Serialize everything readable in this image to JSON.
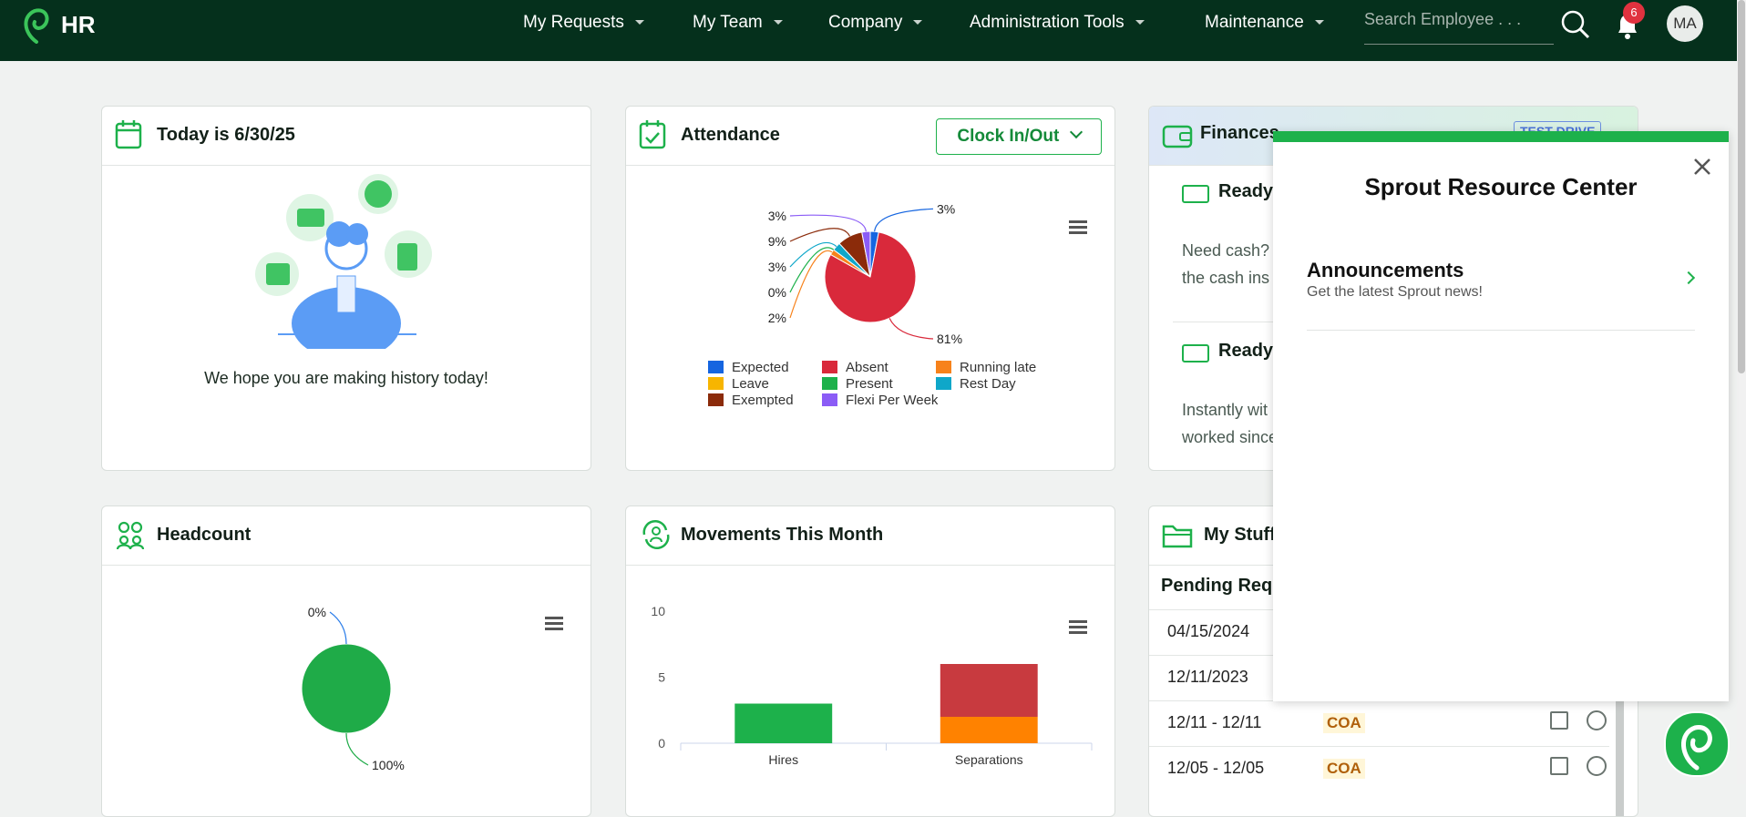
{
  "header": {
    "logo": "HR",
    "nav": [
      "My Requests",
      "My Team",
      "Company",
      "Administration Tools",
      "Maintenance"
    ],
    "search_placeholder": "Search Employee . . .",
    "notifications": 6,
    "avatar": "MA"
  },
  "today": {
    "title": "Today is 6/30/25",
    "message": "We hope you are making history today!"
  },
  "attendance": {
    "title": "Attendance",
    "button": "Clock In/Out",
    "chart_data": {
      "type": "pie",
      "categories": [
        "Expected",
        "Absent",
        "Running late",
        "Leave",
        "Present",
        "Rest Day",
        "Exempted",
        "Flexi Per Week"
      ],
      "values": [
        3,
        81,
        2,
        null,
        0,
        3,
        9,
        3
      ],
      "value_labels": [
        "3%",
        "81%",
        "2%",
        null,
        "0%",
        "3%",
        "9%",
        "3%"
      ],
      "colors": [
        "#1565e0",
        "#d9293b",
        "#f7821b",
        "#f7b500",
        "#1db14b",
        "#0fa7c9",
        "#8b2b0a",
        "#8b5cf6"
      ],
      "legend": "bottom"
    }
  },
  "finances": {
    "title": "Finances",
    "badge": "TEST DRIVE",
    "items": [
      {
        "heading": "Ready",
        "lines": [
          "Need cash? I",
          "the cash ins"
        ]
      },
      {
        "heading": "Ready",
        "lines": [
          "Instantly wit",
          "worked since"
        ]
      }
    ]
  },
  "headcount": {
    "title": "Headcount",
    "chart_data": {
      "type": "pie",
      "values": [
        0,
        100
      ],
      "value_labels": [
        "0%",
        "100%"
      ],
      "colors": [
        "#2b7de9",
        "#1fab48"
      ]
    }
  },
  "movements": {
    "title": "Movements This Month",
    "chart_data": {
      "type": "bar",
      "stacked": true,
      "categories": [
        "Hires",
        "Separations"
      ],
      "series": [
        {
          "color": "#1db14b",
          "values": [
            3,
            null
          ]
        },
        {
          "color": "#ff8200",
          "values": [
            null,
            2
          ]
        },
        {
          "color": "#c83a3f",
          "values": [
            null,
            4
          ]
        }
      ],
      "ylim": [
        0,
        10
      ],
      "yticks": [
        0,
        5,
        10
      ],
      "grid": false
    }
  },
  "my_stuff": {
    "title": "My Stuff",
    "subtitle": "Pending Requ",
    "rows": [
      [
        "04/15/2024"
      ],
      [
        "12/11/2023"
      ],
      [
        "12/11 - 12/11",
        "COA"
      ],
      [
        "12/05 - 12/05",
        "COA"
      ]
    ]
  },
  "resource_center": {
    "title": "Sprout Resource Center",
    "items": [
      {
        "title": "Announcements",
        "subtitle": "Get the latest Sprout news!"
      }
    ]
  }
}
